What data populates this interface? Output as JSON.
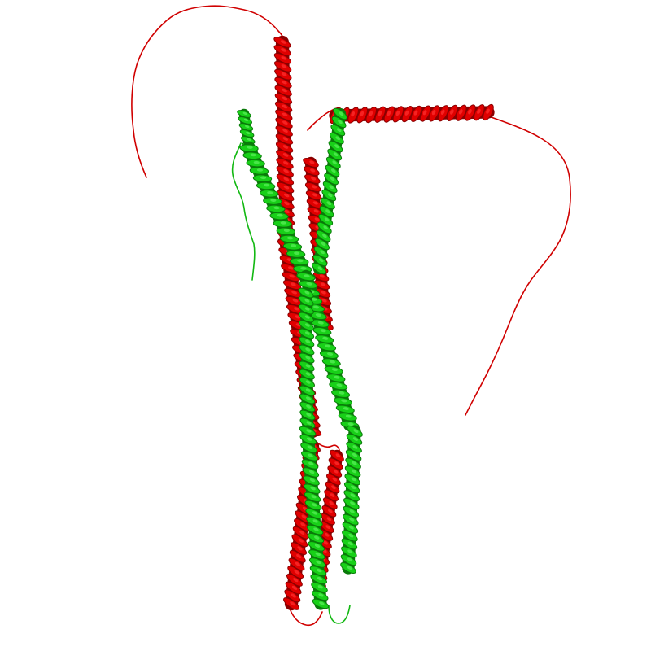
{
  "scene": {
    "description_kind": "protein-cartoon",
    "background": "#ffffff",
    "chains": [
      {
        "name": "chain-red",
        "color": "#e00000",
        "dark": "#8a0000",
        "light": "#ff3030"
      },
      {
        "name": "chain-green",
        "color": "#18d018",
        "dark": "#0a7a0a",
        "light": "#5cf05c"
      }
    ]
  }
}
